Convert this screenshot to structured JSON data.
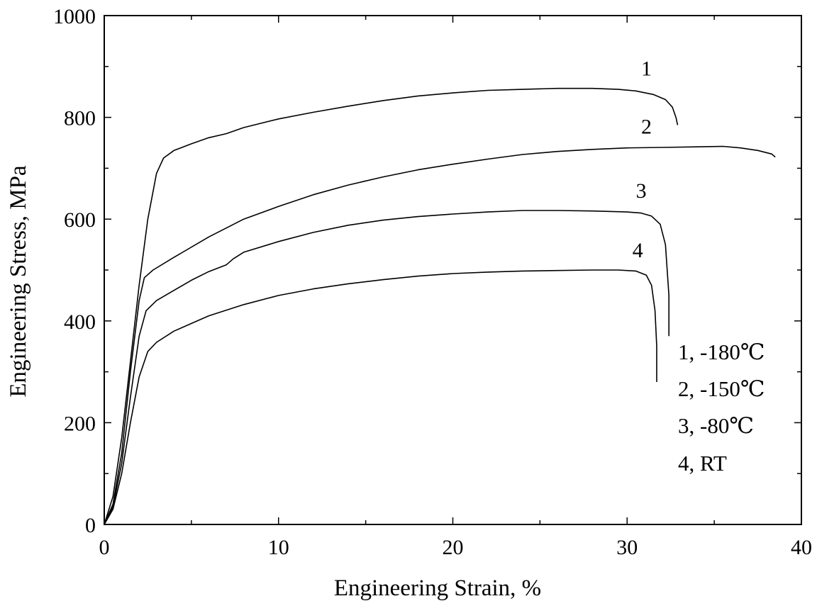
{
  "chart_data": {
    "type": "line",
    "xlabel": "Engineering Strain, %",
    "ylabel": "Engineering Stress, MPa",
    "xlim": [
      0,
      40
    ],
    "ylim": [
      0,
      1000
    ],
    "x_ticks": [
      "0",
      "10",
      "20",
      "30",
      "40"
    ],
    "y_ticks": [
      "0",
      "200",
      "400",
      "600",
      "800",
      "1000"
    ],
    "grid": false,
    "legend": {
      "placement": "right",
      "entries": [
        "1, -180℃",
        "2, -150℃",
        "3, -80℃",
        "4, RT"
      ]
    },
    "series": [
      {
        "name": "1, -180℃",
        "curve_label": "1",
        "color": "#000000",
        "points": [
          [
            0,
            0
          ],
          [
            0.5,
            55
          ],
          [
            1.0,
            170
          ],
          [
            1.5,
            320
          ],
          [
            2.0,
            470
          ],
          [
            2.5,
            600
          ],
          [
            3.0,
            690
          ],
          [
            3.4,
            720
          ],
          [
            4.0,
            735
          ],
          [
            5,
            748
          ],
          [
            6,
            760
          ],
          [
            7,
            768
          ],
          [
            8,
            780
          ],
          [
            10,
            797
          ],
          [
            12,
            810
          ],
          [
            14,
            822
          ],
          [
            16,
            833
          ],
          [
            18,
            842
          ],
          [
            20,
            848
          ],
          [
            22,
            853
          ],
          [
            24,
            855
          ],
          [
            26,
            857
          ],
          [
            28,
            857
          ],
          [
            29.5,
            855
          ],
          [
            30.5,
            852
          ],
          [
            31.5,
            845
          ],
          [
            32.2,
            835
          ],
          [
            32.6,
            820
          ],
          [
            32.8,
            800
          ],
          [
            32.9,
            785
          ]
        ]
      },
      {
        "name": "2, -150℃",
        "curve_label": "2",
        "color": "#000000",
        "points": [
          [
            0,
            0
          ],
          [
            0.5,
            40
          ],
          [
            1.0,
            140
          ],
          [
            1.5,
            300
          ],
          [
            2.0,
            440
          ],
          [
            2.3,
            485
          ],
          [
            2.8,
            500
          ],
          [
            4,
            525
          ],
          [
            6,
            565
          ],
          [
            8,
            600
          ],
          [
            10,
            625
          ],
          [
            12,
            648
          ],
          [
            14,
            667
          ],
          [
            16,
            683
          ],
          [
            18,
            697
          ],
          [
            20,
            708
          ],
          [
            22,
            718
          ],
          [
            24,
            727
          ],
          [
            26,
            733
          ],
          [
            28,
            737
          ],
          [
            30,
            740
          ],
          [
            32,
            741
          ],
          [
            34,
            742
          ],
          [
            35.5,
            743
          ],
          [
            36.5,
            740
          ],
          [
            37.5,
            735
          ],
          [
            38.3,
            728
          ],
          [
            38.5,
            722
          ]
        ]
      },
      {
        "name": "3, -80℃",
        "curve_label": "3",
        "color": "#000000",
        "points": [
          [
            0,
            0
          ],
          [
            0.5,
            35
          ],
          [
            1.0,
            120
          ],
          [
            1.5,
            250
          ],
          [
            2.0,
            370
          ],
          [
            2.4,
            420
          ],
          [
            3,
            440
          ],
          [
            4,
            460
          ],
          [
            5,
            480
          ],
          [
            6,
            497
          ],
          [
            7,
            510
          ],
          [
            7.4,
            522
          ],
          [
            8,
            535
          ],
          [
            10,
            556
          ],
          [
            12,
            574
          ],
          [
            14,
            588
          ],
          [
            16,
            598
          ],
          [
            18,
            605
          ],
          [
            20,
            610
          ],
          [
            22,
            614
          ],
          [
            24,
            617
          ],
          [
            26,
            617
          ],
          [
            28,
            616
          ],
          [
            30,
            614
          ],
          [
            30.8,
            612
          ],
          [
            31.4,
            606
          ],
          [
            31.9,
            590
          ],
          [
            32.2,
            550
          ],
          [
            32.4,
            450
          ],
          [
            32.4,
            370
          ]
        ]
      },
      {
        "name": "4, RT",
        "curve_label": "4",
        "color": "#000000",
        "points": [
          [
            0,
            0
          ],
          [
            0.5,
            30
          ],
          [
            1.0,
            100
          ],
          [
            1.5,
            200
          ],
          [
            2.0,
            290
          ],
          [
            2.5,
            340
          ],
          [
            3,
            358
          ],
          [
            4,
            380
          ],
          [
            5,
            395
          ],
          [
            6,
            410
          ],
          [
            8,
            432
          ],
          [
            10,
            450
          ],
          [
            12,
            463
          ],
          [
            14,
            473
          ],
          [
            16,
            481
          ],
          [
            18,
            488
          ],
          [
            20,
            493
          ],
          [
            22,
            496
          ],
          [
            24,
            498
          ],
          [
            26,
            499
          ],
          [
            28,
            500
          ],
          [
            29.5,
            500
          ],
          [
            30.5,
            498
          ],
          [
            31.1,
            490
          ],
          [
            31.4,
            470
          ],
          [
            31.6,
            420
          ],
          [
            31.7,
            350
          ],
          [
            31.7,
            280
          ]
        ]
      }
    ]
  }
}
